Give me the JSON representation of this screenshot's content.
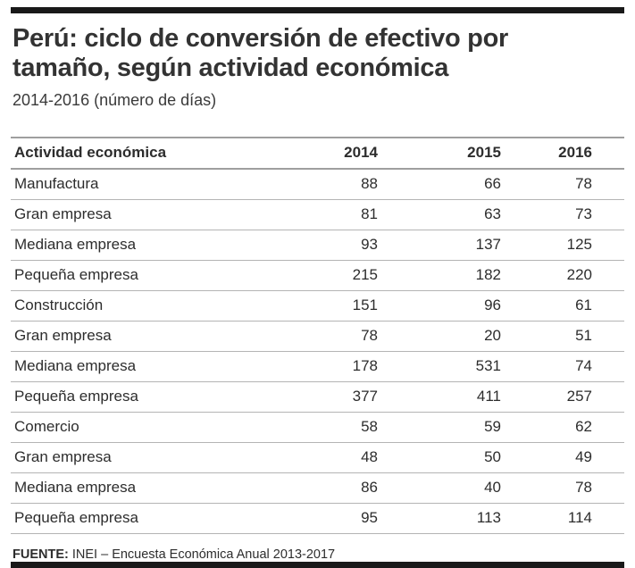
{
  "colors": {
    "top_bottom_bar": "#191919",
    "header_rule": "#9f9f9f",
    "row_rule": "#b4b4b4",
    "text": "#2d2d2d"
  },
  "header": {
    "title_lines": [
      "Perú: ciclo de conversión de efectivo por",
      "tamaño, según actividad económica"
    ]
  },
  "chart_data": {
    "type": "table",
    "title": "Perú: ciclo de conversión de efectivo por tamaño, según actividad económica",
    "subtitle": "2014-2016 (número de días)",
    "columns": [
      "Actividad económica",
      "2014",
      "2015",
      "2016"
    ],
    "rows": [
      {
        "label": "Manufactura",
        "category": true,
        "values": [
          88,
          66,
          78
        ]
      },
      {
        "label": "Gran empresa",
        "category": false,
        "values": [
          81,
          63,
          73
        ]
      },
      {
        "label": "Mediana empresa",
        "category": false,
        "values": [
          93,
          137,
          125
        ]
      },
      {
        "label": "Pequeña empresa",
        "category": false,
        "values": [
          215,
          182,
          220
        ]
      },
      {
        "label": "Construcción",
        "category": true,
        "values": [
          151,
          96,
          61
        ]
      },
      {
        "label": "Gran empresa",
        "category": false,
        "values": [
          78,
          20,
          51
        ]
      },
      {
        "label": "Mediana empresa",
        "category": false,
        "values": [
          178,
          531,
          74
        ]
      },
      {
        "label": "Pequeña empresa",
        "category": false,
        "values": [
          377,
          411,
          257
        ]
      },
      {
        "label": "Comercio",
        "category": true,
        "values": [
          58,
          59,
          62
        ]
      },
      {
        "label": "Gran empresa",
        "category": false,
        "values": [
          48,
          50,
          49
        ]
      },
      {
        "label": "Mediana empresa",
        "category": false,
        "values": [
          86,
          40,
          78
        ]
      },
      {
        "label": "Pequeña empresa",
        "category": false,
        "values": [
          95,
          113,
          114
        ]
      }
    ],
    "source_label": "FUENTE:",
    "source_text": "INEI – Encuesta Económica Anual 2013-2017"
  }
}
